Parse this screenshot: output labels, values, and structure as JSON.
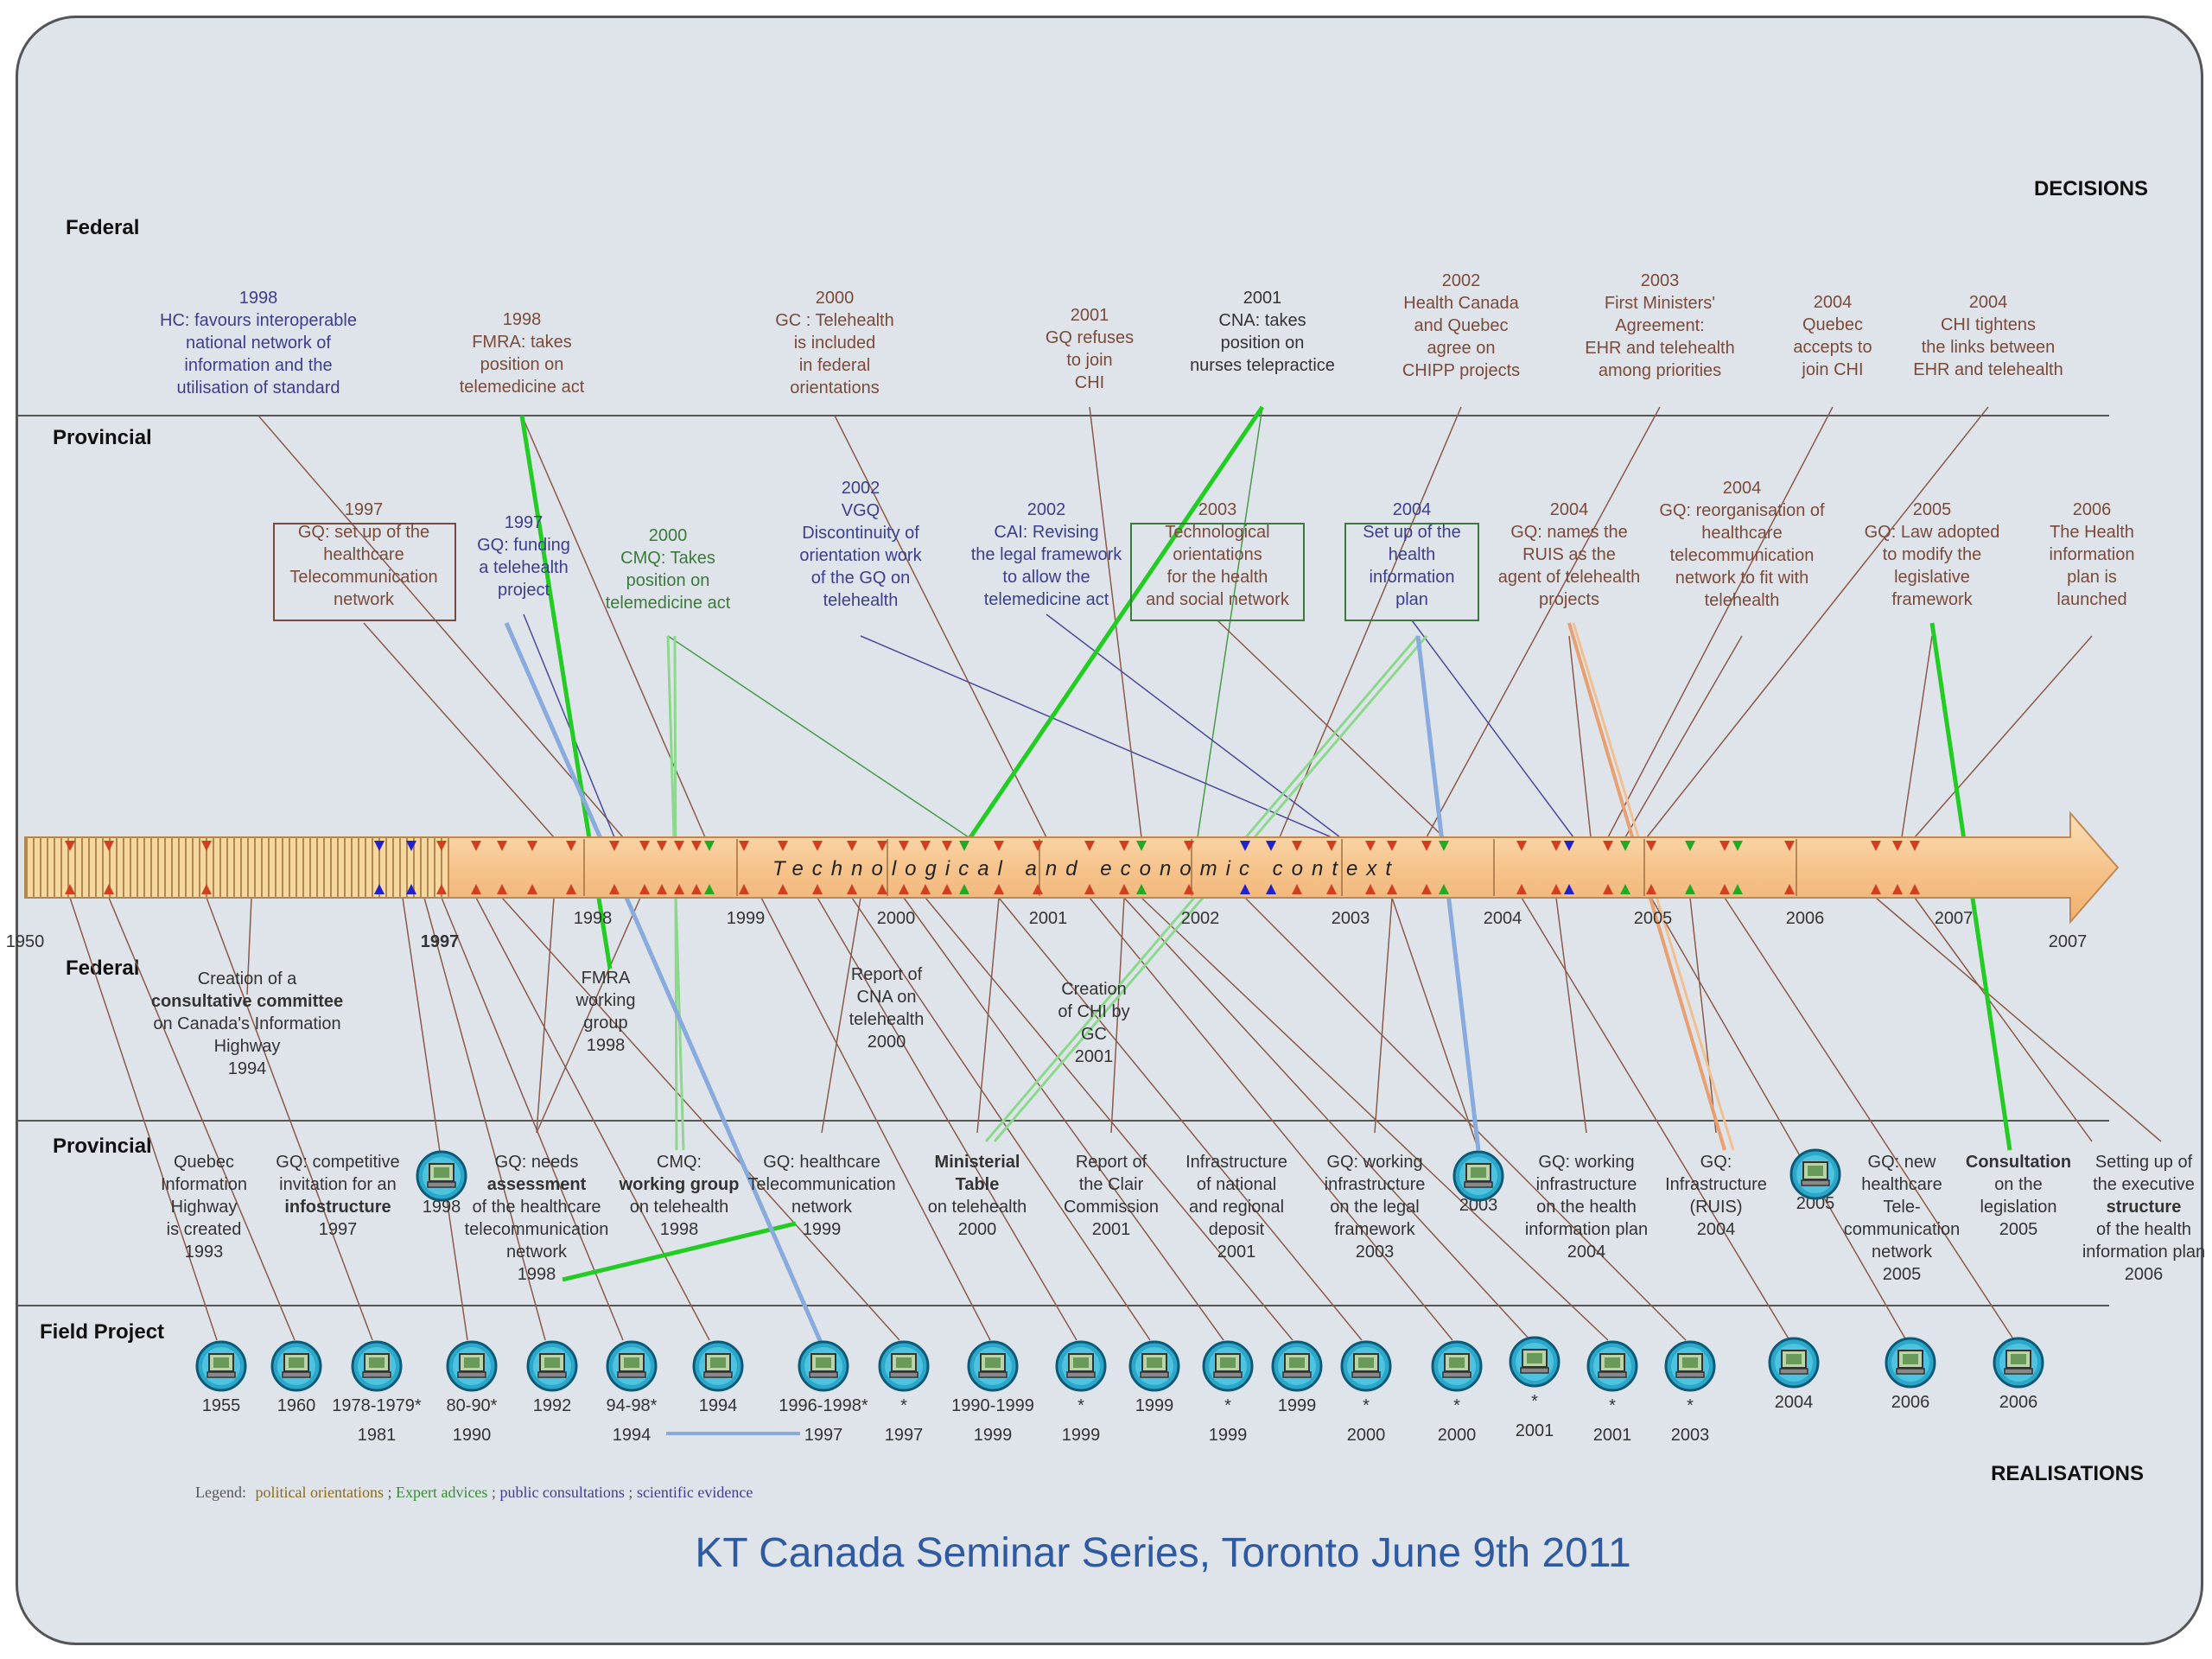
{
  "corners": {
    "top_right": "DECISIONS",
    "bottom_right": "REALISATIONS"
  },
  "sections": {
    "federal_top": "Federal",
    "provincial_top": "Provincial",
    "federal_bottom": "Federal",
    "provincial_bottom": "Provincial",
    "field_project": "Field Project"
  },
  "timeline": {
    "center_text": "Technological and economic context",
    "start_year": "1950",
    "marker_1997": "1997",
    "end_year": "2007",
    "years": [
      "1998",
      "1999",
      "2000",
      "2001",
      "2002",
      "2003",
      "2004",
      "2005",
      "2006",
      "2007"
    ]
  },
  "federal_decisions": [
    {
      "lines": [
        "1998",
        "HC: favours interoperable",
        "national network of",
        "information and the",
        "utilisation of standard"
      ],
      "color": "blue"
    },
    {
      "lines": [
        "1998",
        "FMRA: takes",
        "position on",
        "telemedicine act"
      ],
      "color": "brown"
    },
    {
      "lines": [
        "2000",
        "GC : Telehealth",
        "is included",
        "in federal",
        "orientations"
      ],
      "color": "brown"
    },
    {
      "lines": [
        "2001",
        "GQ refuses",
        "to join",
        "CHI"
      ],
      "color": "brown"
    },
    {
      "lines": [
        "2001",
        "CNA: takes",
        "position on",
        "nurses telepractice"
      ],
      "color": "dark"
    },
    {
      "lines": [
        "2002",
        "Health Canada",
        "and Quebec",
        "agree on",
        "CHIPP projects"
      ],
      "color": "brown"
    },
    {
      "lines": [
        "2003",
        "First Ministers'",
        "Agreement:",
        "EHR and telehealth",
        "among priorities"
      ],
      "color": "brown"
    },
    {
      "lines": [
        "2004",
        "Quebec",
        "accepts to",
        "join CHI"
      ],
      "color": "brown"
    },
    {
      "lines": [
        "2004",
        "CHI tightens",
        "the links between",
        "EHR and telehealth"
      ],
      "color": "brown"
    }
  ],
  "provincial_decisions": [
    {
      "lines": [
        "1997",
        "GQ: set up of the",
        "healthcare",
        "Telecommunication",
        "network"
      ],
      "color": "brown"
    },
    {
      "lines": [
        "1997",
        "GQ: funding",
        "a telehealth",
        "project"
      ],
      "color": "blue"
    },
    {
      "lines": [
        "2000",
        "CMQ: Takes",
        "position on",
        "telemedicine act"
      ],
      "color": "green"
    },
    {
      "lines": [
        "2002",
        "VGQ",
        "Discontinuity of",
        "orientation work",
        "of the GQ on",
        "telehealth"
      ],
      "color": "blue"
    },
    {
      "lines": [
        "2002",
        "CAI: Revising",
        "the legal framework",
        "to allow the",
        "telemedicine act"
      ],
      "color": "blue"
    },
    {
      "lines": [
        "2003",
        "Technological",
        "orientations",
        "for the health",
        "and social network"
      ],
      "color": "brown"
    },
    {
      "lines": [
        "2004",
        "Set up of the",
        "health",
        "information",
        "plan"
      ],
      "color": "blue"
    },
    {
      "lines": [
        "2004",
        "GQ: names the",
        "RUIS as the",
        "agent of telehealth",
        "projects"
      ],
      "color": "brown"
    },
    {
      "lines": [
        "2004",
        "GQ: reorganisation of",
        "healthcare",
        "telecommunication",
        "network to fit with",
        "telehealth"
      ],
      "color": "brown"
    },
    {
      "lines": [
        "2005",
        "GQ: Law adopted",
        "to modify the",
        "legislative",
        "framework"
      ],
      "color": "brown"
    },
    {
      "lines": [
        "2006",
        "The Health",
        "information",
        "plan is",
        "launched"
      ],
      "color": "brown"
    }
  ],
  "federal_realisations": [
    {
      "lines": [
        "Creation of a",
        "consultative committee",
        "on Canada's Information",
        "Highway",
        "1994"
      ],
      "bold": [
        1
      ]
    },
    {
      "lines": [
        "FMRA",
        "working",
        "group",
        "1998"
      ],
      "bold": []
    },
    {
      "lines": [
        "Report of",
        "CNA on",
        "telehealth",
        "2000"
      ],
      "bold": []
    },
    {
      "lines": [
        "Creation",
        "of CHI by",
        "GC",
        "2001"
      ],
      "bold": []
    }
  ],
  "provincial_realisations": [
    {
      "lines": [
        "Quebec",
        "Information",
        "Highway",
        "is created",
        "1993"
      ],
      "bold": []
    },
    {
      "lines": [
        "GQ: competitive",
        "invitation for an",
        "infostructure",
        "1997"
      ],
      "bold": [
        2
      ]
    },
    {
      "lines": [
        "1998"
      ],
      "bold": []
    },
    {
      "lines": [
        "GQ: needs",
        "assessment",
        "of the healthcare",
        "telecommunication",
        "network",
        "1998"
      ],
      "bold": [
        1
      ]
    },
    {
      "lines": [
        "CMQ:",
        "working group",
        "on telehealth",
        "1998"
      ],
      "bold": [
        1
      ]
    },
    {
      "lines": [
        "GQ: healthcare",
        "Telecommunication",
        "network",
        "1999"
      ],
      "bold": []
    },
    {
      "lines": [
        "Ministerial",
        "Table",
        "on telehealth",
        "2000"
      ],
      "bold": [
        0,
        1
      ]
    },
    {
      "lines": [
        "Report of",
        "the Clair",
        "Commission",
        "2001"
      ],
      "bold": []
    },
    {
      "lines": [
        "Infrastructure",
        "of national",
        "and regional",
        "deposit",
        "2001"
      ],
      "bold": []
    },
    {
      "lines": [
        "GQ: working",
        "infrastructure",
        "on the legal",
        "framework",
        "2003"
      ],
      "bold": []
    },
    {
      "lines": [
        "2003"
      ],
      "bold": []
    },
    {
      "lines": [
        "GQ: working",
        "infrastructure",
        "on the health",
        "information plan",
        "2004"
      ],
      "bold": []
    },
    {
      "lines": [
        "GQ:",
        "Infrastructure",
        "(RUIS)",
        "2004"
      ],
      "bold": []
    },
    {
      "lines": [
        "2005"
      ],
      "bold": []
    },
    {
      "lines": [
        "GQ: new",
        "healthcare",
        "Tele-",
        "communication",
        "network",
        "2005"
      ],
      "bold": []
    },
    {
      "lines": [
        "Consultation",
        "on the",
        "legislation",
        "2005"
      ],
      "bold": [
        0
      ]
    },
    {
      "lines": [
        "Setting up of",
        "the executive",
        "structure",
        "of the health",
        "information plan",
        "2006"
      ],
      "bold": [
        2
      ]
    }
  ],
  "field_projects": [
    {
      "top": "1955",
      "bottom": ""
    },
    {
      "top": "1960",
      "bottom": ""
    },
    {
      "top": "1978-1979*",
      "bottom": "1981"
    },
    {
      "top": "80-90*",
      "bottom": "1990"
    },
    {
      "top": "1992",
      "bottom": ""
    },
    {
      "top": "94-98*",
      "bottom": "1994"
    },
    {
      "top": "1994",
      "bottom": ""
    },
    {
      "top": "1996-1998*",
      "bottom": "1997"
    },
    {
      "top": "*",
      "bottom": "1997"
    },
    {
      "top": "1990-1999",
      "bottom": "1999"
    },
    {
      "top": "*",
      "bottom": "1999"
    },
    {
      "top": "1999",
      "bottom": ""
    },
    {
      "top": "*",
      "bottom": "1999"
    },
    {
      "top": "1999",
      "bottom": ""
    },
    {
      "top": "*",
      "bottom": "2000"
    },
    {
      "top": "*",
      "bottom": "2000"
    },
    {
      "top": "*",
      "bottom": "2001"
    },
    {
      "top": "*",
      "bottom": "2001"
    },
    {
      "top": "*",
      "bottom": "2003"
    },
    {
      "top": "2004",
      "bottom": ""
    },
    {
      "top": "2006",
      "bottom": ""
    },
    {
      "top": "2006",
      "bottom": ""
    }
  ],
  "legend": {
    "prefix": "Legend:",
    "items": [
      {
        "text": "political orientations",
        "color": "#8a6a20"
      },
      {
        "text": "Expert advices",
        "color": "#3a8a3a"
      },
      {
        "text": "public consultations",
        "color": "#3b3f8c"
      },
      {
        "text": "scientific evidence",
        "color": "#3b3f8c"
      }
    ],
    "separator": " ; "
  },
  "footer": "KT Canada Seminar Series, Toronto June 9th 2011",
  "colors": {
    "blue_text": "#3b3f8c",
    "brown_text": "#7a4a3a",
    "green_text": "#3a7a3a",
    "bar_fill": "#f8c890",
    "highlight_green": "#22cc22",
    "highlight_blue": "#88aadd",
    "highlight_orange": "#e8a070"
  }
}
